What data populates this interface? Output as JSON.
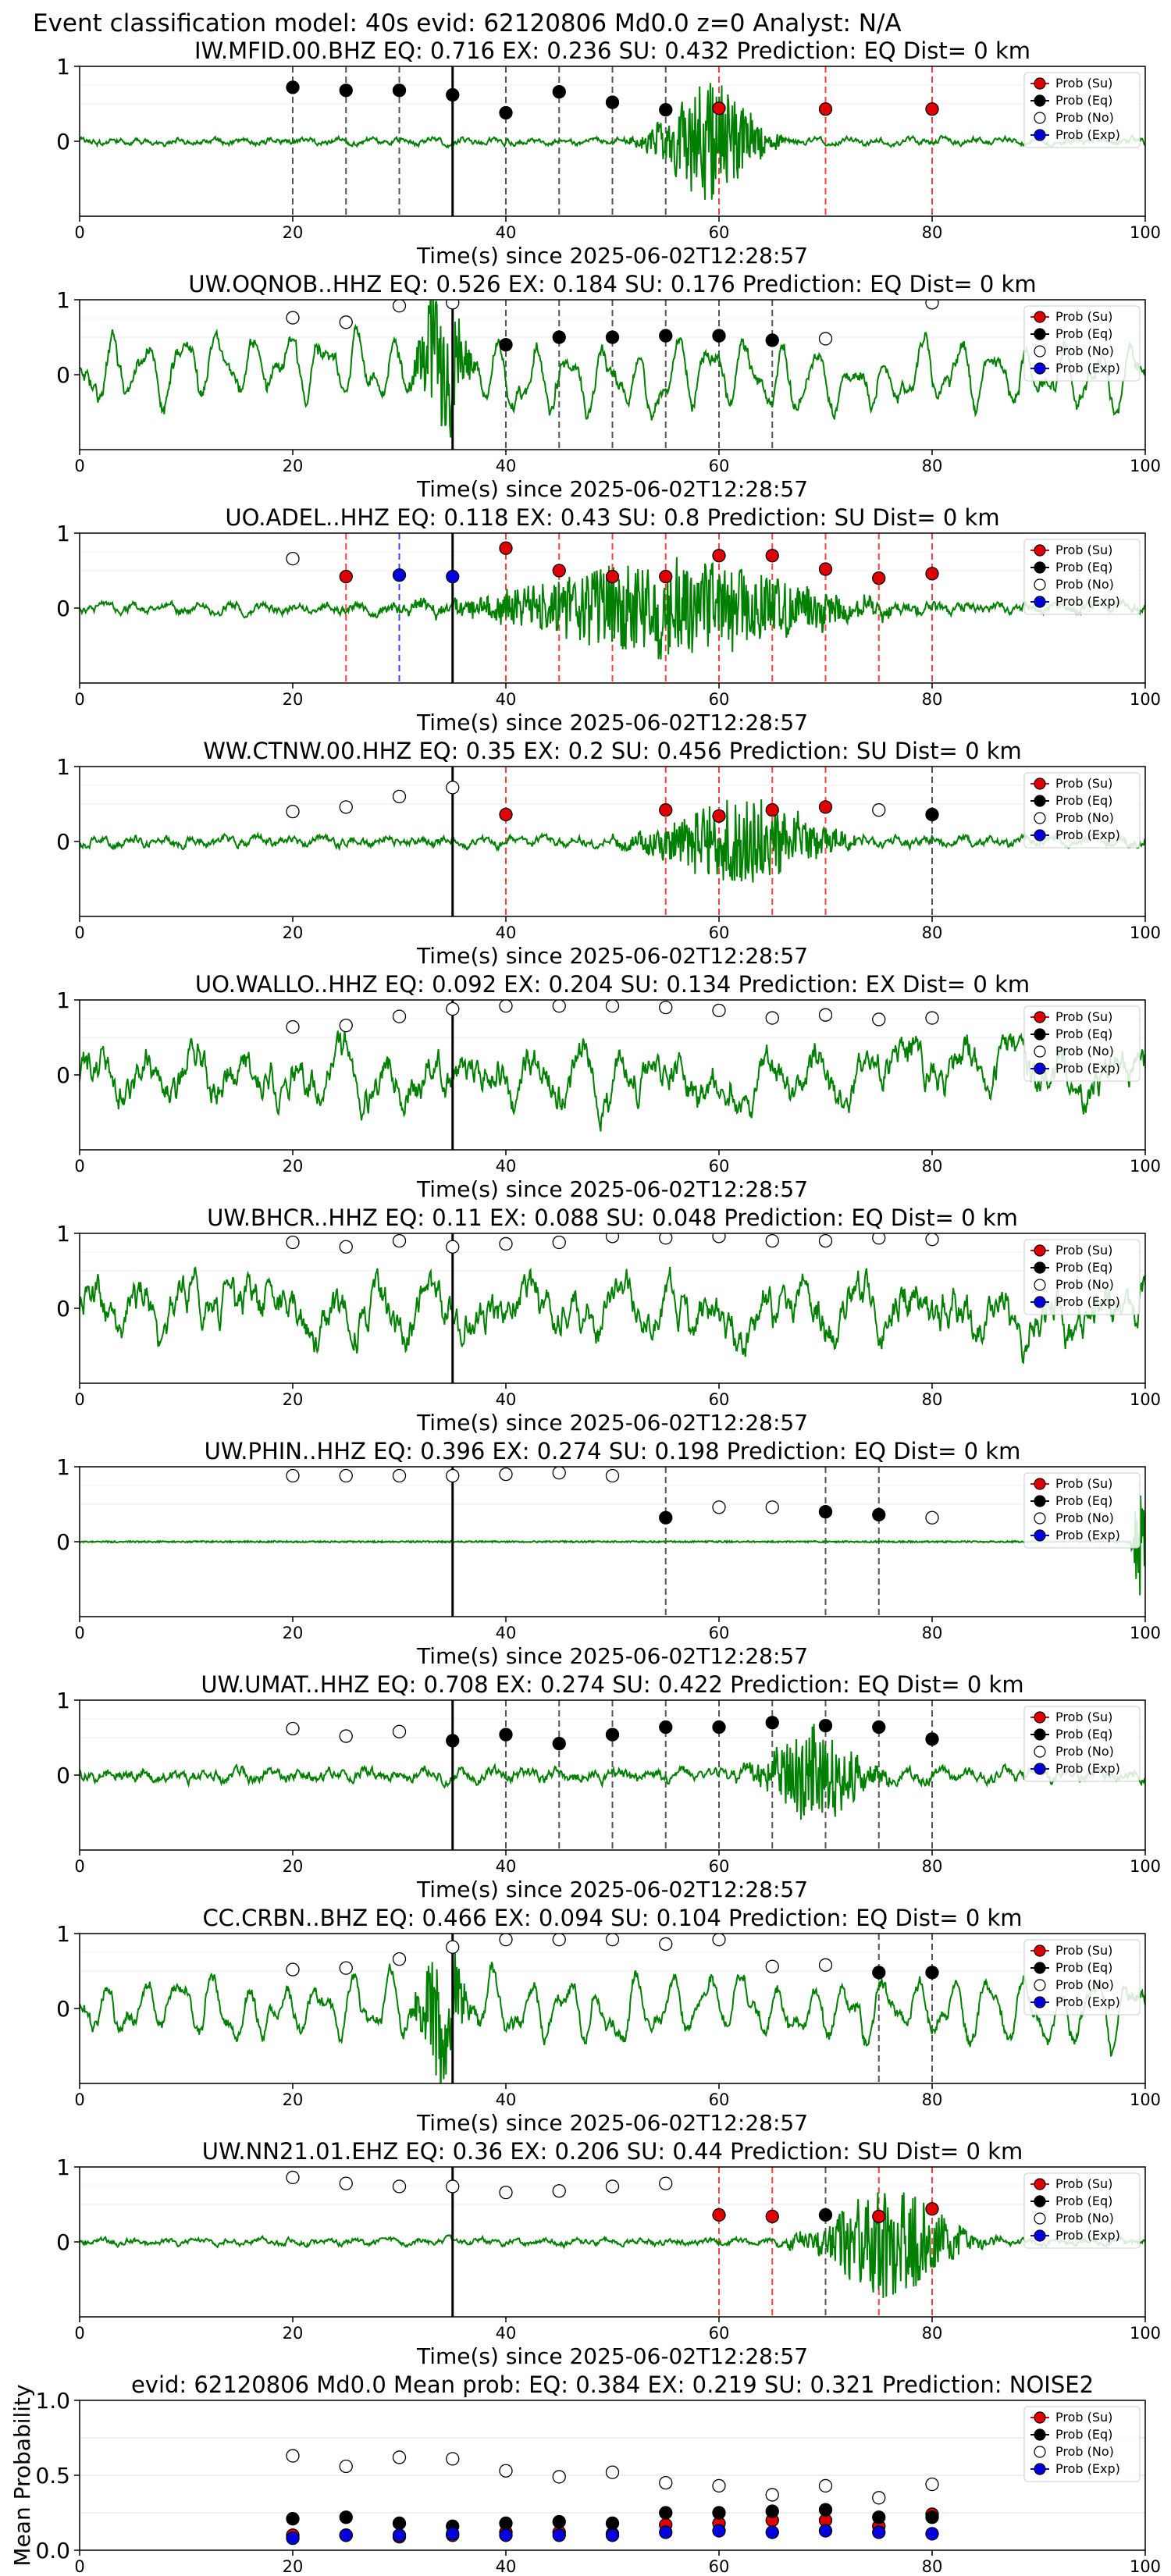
{
  "figure_title": "Event classification model: 40s evid: 62120806 Md0.0 z=0 Analyst: N/A",
  "xlabel": "Time(s) since 2025-06-02T12:28:57",
  "legend": [
    {
      "label": "Prob (Su)",
      "fill": "#e00000",
      "edge": "#000000"
    },
    {
      "label": "Prob (Eq)",
      "fill": "#000000",
      "edge": "#000000"
    },
    {
      "label": "Prob (No)",
      "fill": "#ffffff",
      "edge": "#000000"
    },
    {
      "label": "Prob (Exp)",
      "fill": "#0000e0",
      "edge": "#000000"
    }
  ],
  "colors": {
    "waveform": "#008000",
    "su_line": "#ff4040",
    "eq_line": "#555555",
    "exp_line": "#4040ff",
    "pick_line": "#000000"
  },
  "chart_data": [
    {
      "type": "line",
      "panel": 1,
      "title": "IW.MFID.00.BHZ   EQ: 0.716  EX: 0.236  SU: 0.432   Prediction: EQ    Dist= 0 km",
      "xlim": [
        0,
        100
      ],
      "ylim": [
        -1,
        1
      ],
      "yticks": [
        0,
        1
      ],
      "xticks": [
        0,
        20,
        40,
        60,
        80,
        100
      ],
      "waveform": {
        "style": "burst",
        "amp": 0.08,
        "burst_center": 59,
        "burst_amp": 0.8,
        "burst_width": 3
      },
      "pick_time": 35,
      "markers": [
        {
          "x": 20,
          "y": 0.72,
          "class": "Eq"
        },
        {
          "x": 25,
          "y": 0.68,
          "class": "Eq"
        },
        {
          "x": 30,
          "y": 0.68,
          "class": "Eq"
        },
        {
          "x": 35,
          "y": 0.62,
          "class": "Eq"
        },
        {
          "x": 40,
          "y": 0.38,
          "class": "Eq"
        },
        {
          "x": 45,
          "y": 0.66,
          "class": "Eq"
        },
        {
          "x": 50,
          "y": 0.52,
          "class": "Eq"
        },
        {
          "x": 55,
          "y": 0.42,
          "class": "Eq"
        },
        {
          "x": 60,
          "y": 0.44,
          "class": "Su"
        },
        {
          "x": 70,
          "y": 0.43,
          "class": "Su"
        },
        {
          "x": 80,
          "y": 0.43,
          "class": "Su"
        }
      ]
    },
    {
      "type": "line",
      "panel": 2,
      "title": "UW.OQNOB..HHZ   EQ: 0.526  EX: 0.184  SU: 0.176   Prediction: EQ    Dist= 0 km",
      "xlim": [
        0,
        100
      ],
      "ylim": [
        -1,
        1
      ],
      "yticks": [
        0,
        1
      ],
      "xticks": [
        0,
        20,
        40,
        60,
        80,
        100
      ],
      "waveform": {
        "style": "smooth",
        "amp": 0.45,
        "burst_center": 34,
        "burst_amp": 0.9,
        "burst_width": 1.5
      },
      "pick_time": 35,
      "markers": [
        {
          "x": 20,
          "y": 0.76,
          "class": "No"
        },
        {
          "x": 25,
          "y": 0.7,
          "class": "No"
        },
        {
          "x": 30,
          "y": 0.92,
          "class": "No"
        },
        {
          "x": 35,
          "y": 0.96,
          "class": "No"
        },
        {
          "x": 40,
          "y": 0.4,
          "class": "Eq"
        },
        {
          "x": 45,
          "y": 0.5,
          "class": "Eq"
        },
        {
          "x": 50,
          "y": 0.5,
          "class": "Eq"
        },
        {
          "x": 55,
          "y": 0.52,
          "class": "Eq"
        },
        {
          "x": 60,
          "y": 0.52,
          "class": "Eq"
        },
        {
          "x": 65,
          "y": 0.46,
          "class": "Eq"
        },
        {
          "x": 70,
          "y": 0.48,
          "class": "No"
        },
        {
          "x": 80,
          "y": 0.96,
          "class": "No"
        }
      ]
    },
    {
      "type": "line",
      "panel": 3,
      "title": "UO.ADEL..HHZ   EQ: 0.118  EX: 0.43  SU: 0.8   Prediction: SU    Dist= 0 km",
      "xlim": [
        0,
        100
      ],
      "ylim": [
        -1,
        1
      ],
      "yticks": [
        0,
        1
      ],
      "xticks": [
        0,
        20,
        40,
        60,
        80,
        100
      ],
      "waveform": {
        "style": "burst",
        "amp": 0.12,
        "burst_center": 55,
        "burst_amp": 0.65,
        "burst_width": 10
      },
      "pick_time": 35,
      "markers": [
        {
          "x": 20,
          "y": 0.66,
          "class": "No"
        },
        {
          "x": 25,
          "y": 0.42,
          "class": "Su"
        },
        {
          "x": 30,
          "y": 0.44,
          "class": "Exp"
        },
        {
          "x": 35,
          "y": 0.42,
          "class": "Exp"
        },
        {
          "x": 40,
          "y": 0.8,
          "class": "Su"
        },
        {
          "x": 45,
          "y": 0.5,
          "class": "Su"
        },
        {
          "x": 50,
          "y": 0.42,
          "class": "Su"
        },
        {
          "x": 55,
          "y": 0.42,
          "class": "Su"
        },
        {
          "x": 60,
          "y": 0.7,
          "class": "Su"
        },
        {
          "x": 65,
          "y": 0.7,
          "class": "Su"
        },
        {
          "x": 70,
          "y": 0.52,
          "class": "Su"
        },
        {
          "x": 75,
          "y": 0.4,
          "class": "Su"
        },
        {
          "x": 80,
          "y": 0.46,
          "class": "Su"
        }
      ]
    },
    {
      "type": "line",
      "panel": 4,
      "title": "WW.CTNW.00.HHZ   EQ: 0.35  EX: 0.2  SU: 0.456   Prediction: SU    Dist= 0 km",
      "xlim": [
        0,
        100
      ],
      "ylim": [
        -1,
        1
      ],
      "yticks": [
        0,
        1
      ],
      "xticks": [
        0,
        20,
        40,
        60,
        80,
        100
      ],
      "waveform": {
        "style": "burst",
        "amp": 0.12,
        "burst_center": 62,
        "burst_amp": 0.6,
        "burst_width": 5
      },
      "pick_time": 35,
      "markers": [
        {
          "x": 20,
          "y": 0.4,
          "class": "No"
        },
        {
          "x": 25,
          "y": 0.46,
          "class": "No"
        },
        {
          "x": 30,
          "y": 0.6,
          "class": "No"
        },
        {
          "x": 35,
          "y": 0.72,
          "class": "No"
        },
        {
          "x": 40,
          "y": 0.36,
          "class": "Su"
        },
        {
          "x": 55,
          "y": 0.42,
          "class": "Su"
        },
        {
          "x": 60,
          "y": 0.34,
          "class": "Su"
        },
        {
          "x": 65,
          "y": 0.42,
          "class": "Su"
        },
        {
          "x": 70,
          "y": 0.46,
          "class": "Su"
        },
        {
          "x": 75,
          "y": 0.42,
          "class": "No"
        },
        {
          "x": 80,
          "y": 0.36,
          "class": "Eq"
        }
      ]
    },
    {
      "type": "line",
      "panel": 5,
      "title": "UO.WALLO..HHZ   EQ: 0.092  EX: 0.204  SU: 0.134   Prediction: EX    Dist= 0 km",
      "xlim": [
        0,
        100
      ],
      "ylim": [
        -1,
        1
      ],
      "yticks": [
        0,
        1
      ],
      "xticks": [
        0,
        20,
        40,
        60,
        80,
        100
      ],
      "waveform": {
        "style": "noisy",
        "amp": 0.45,
        "burst_center": 0,
        "burst_amp": 0,
        "burst_width": 1
      },
      "pick_time": 35,
      "markers": [
        {
          "x": 20,
          "y": 0.64,
          "class": "No"
        },
        {
          "x": 25,
          "y": 0.66,
          "class": "No"
        },
        {
          "x": 30,
          "y": 0.78,
          "class": "No"
        },
        {
          "x": 35,
          "y": 0.88,
          "class": "No"
        },
        {
          "x": 40,
          "y": 0.92,
          "class": "No"
        },
        {
          "x": 45,
          "y": 0.92,
          "class": "No"
        },
        {
          "x": 50,
          "y": 0.92,
          "class": "No"
        },
        {
          "x": 55,
          "y": 0.9,
          "class": "No"
        },
        {
          "x": 60,
          "y": 0.86,
          "class": "No"
        },
        {
          "x": 65,
          "y": 0.76,
          "class": "No"
        },
        {
          "x": 70,
          "y": 0.8,
          "class": "No"
        },
        {
          "x": 75,
          "y": 0.74,
          "class": "No"
        },
        {
          "x": 80,
          "y": 0.76,
          "class": "No"
        }
      ]
    },
    {
      "type": "line",
      "panel": 6,
      "title": "UW.BHCR..HHZ   EQ: 0.11  EX: 0.088  SU: 0.048   Prediction: EQ    Dist= 0 km",
      "xlim": [
        0,
        100
      ],
      "ylim": [
        -1,
        1
      ],
      "yticks": [
        0,
        1
      ],
      "xticks": [
        0,
        20,
        40,
        60,
        80,
        100
      ],
      "waveform": {
        "style": "noisy",
        "amp": 0.5,
        "burst_center": 0,
        "burst_amp": 0,
        "burst_width": 1
      },
      "pick_time": 35,
      "markers": [
        {
          "x": 20,
          "y": 0.88,
          "class": "No"
        },
        {
          "x": 25,
          "y": 0.82,
          "class": "No"
        },
        {
          "x": 30,
          "y": 0.9,
          "class": "No"
        },
        {
          "x": 35,
          "y": 0.82,
          "class": "No"
        },
        {
          "x": 40,
          "y": 0.86,
          "class": "No"
        },
        {
          "x": 45,
          "y": 0.88,
          "class": "No"
        },
        {
          "x": 50,
          "y": 0.96,
          "class": "No"
        },
        {
          "x": 55,
          "y": 0.94,
          "class": "No"
        },
        {
          "x": 60,
          "y": 0.96,
          "class": "No"
        },
        {
          "x": 65,
          "y": 0.9,
          "class": "No"
        },
        {
          "x": 70,
          "y": 0.9,
          "class": "No"
        },
        {
          "x": 75,
          "y": 0.94,
          "class": "No"
        },
        {
          "x": 80,
          "y": 0.92,
          "class": "No"
        }
      ]
    },
    {
      "type": "line",
      "panel": 7,
      "title": "UW.PHIN..HHZ   EQ: 0.396  EX: 0.274  SU: 0.198   Prediction: EQ    Dist= 0 km",
      "xlim": [
        0,
        100
      ],
      "ylim": [
        -1,
        1
      ],
      "yticks": [
        0,
        1
      ],
      "xticks": [
        0,
        20,
        40,
        60,
        80,
        100
      ],
      "waveform": {
        "style": "flat",
        "amp": 0.02,
        "burst_center": 99.5,
        "burst_amp": 0.9,
        "burst_width": 0.4
      },
      "pick_time": 35,
      "markers": [
        {
          "x": 20,
          "y": 0.88,
          "class": "No"
        },
        {
          "x": 25,
          "y": 0.88,
          "class": "No"
        },
        {
          "x": 30,
          "y": 0.88,
          "class": "No"
        },
        {
          "x": 35,
          "y": 0.88,
          "class": "No"
        },
        {
          "x": 40,
          "y": 0.9,
          "class": "No"
        },
        {
          "x": 45,
          "y": 0.92,
          "class": "No"
        },
        {
          "x": 50,
          "y": 0.88,
          "class": "No"
        },
        {
          "x": 55,
          "y": 0.32,
          "class": "Eq"
        },
        {
          "x": 60,
          "y": 0.46,
          "class": "No"
        },
        {
          "x": 65,
          "y": 0.46,
          "class": "No"
        },
        {
          "x": 70,
          "y": 0.4,
          "class": "Eq"
        },
        {
          "x": 75,
          "y": 0.36,
          "class": "Eq"
        },
        {
          "x": 80,
          "y": 0.32,
          "class": "No"
        }
      ]
    },
    {
      "type": "line",
      "panel": 8,
      "title": "UW.UMAT..HHZ   EQ: 0.708  EX: 0.274  SU: 0.422   Prediction: EQ    Dist= 0 km",
      "xlim": [
        0,
        100
      ],
      "ylim": [
        -1,
        1
      ],
      "yticks": [
        0,
        1
      ],
      "xticks": [
        0,
        20,
        40,
        60,
        80,
        100
      ],
      "waveform": {
        "style": "burst",
        "amp": 0.15,
        "burst_center": 69,
        "burst_amp": 0.7,
        "burst_width": 3
      },
      "pick_time": 35,
      "markers": [
        {
          "x": 20,
          "y": 0.62,
          "class": "No"
        },
        {
          "x": 25,
          "y": 0.52,
          "class": "No"
        },
        {
          "x": 30,
          "y": 0.58,
          "class": "No"
        },
        {
          "x": 35,
          "y": 0.46,
          "class": "Eq"
        },
        {
          "x": 40,
          "y": 0.54,
          "class": "Eq"
        },
        {
          "x": 45,
          "y": 0.42,
          "class": "Eq"
        },
        {
          "x": 50,
          "y": 0.54,
          "class": "Eq"
        },
        {
          "x": 55,
          "y": 0.64,
          "class": "Eq"
        },
        {
          "x": 60,
          "y": 0.64,
          "class": "Eq"
        },
        {
          "x": 65,
          "y": 0.7,
          "class": "Eq"
        },
        {
          "x": 70,
          "y": 0.66,
          "class": "Eq"
        },
        {
          "x": 75,
          "y": 0.64,
          "class": "Eq"
        },
        {
          "x": 80,
          "y": 0.48,
          "class": "Eq"
        }
      ]
    },
    {
      "type": "line",
      "panel": 9,
      "title": "CC.CRBN..BHZ   EQ: 0.466  EX: 0.094  SU: 0.104   Prediction: EQ    Dist= 0 km",
      "xlim": [
        0,
        100
      ],
      "ylim": [
        -1,
        1
      ],
      "yticks": [
        0,
        1
      ],
      "xticks": [
        0,
        20,
        40,
        60,
        80,
        100
      ],
      "waveform": {
        "style": "smooth",
        "amp": 0.4,
        "burst_center": 34,
        "burst_amp": 0.8,
        "burst_width": 1.5
      },
      "pick_time": 35,
      "markers": [
        {
          "x": 20,
          "y": 0.52,
          "class": "No"
        },
        {
          "x": 25,
          "y": 0.54,
          "class": "No"
        },
        {
          "x": 30,
          "y": 0.66,
          "class": "No"
        },
        {
          "x": 35,
          "y": 0.82,
          "class": "No"
        },
        {
          "x": 40,
          "y": 0.92,
          "class": "No"
        },
        {
          "x": 45,
          "y": 0.92,
          "class": "No"
        },
        {
          "x": 50,
          "y": 0.92,
          "class": "No"
        },
        {
          "x": 55,
          "y": 0.86,
          "class": "No"
        },
        {
          "x": 60,
          "y": 0.92,
          "class": "No"
        },
        {
          "x": 65,
          "y": 0.56,
          "class": "No"
        },
        {
          "x": 70,
          "y": 0.58,
          "class": "No"
        },
        {
          "x": 75,
          "y": 0.48,
          "class": "Eq"
        },
        {
          "x": 80,
          "y": 0.48,
          "class": "Eq"
        }
      ]
    },
    {
      "type": "line",
      "panel": 10,
      "title": "UW.NN21.01.EHZ   EQ: 0.36  EX: 0.206  SU: 0.44   Prediction: SU    Dist= 0 km",
      "xlim": [
        0,
        100
      ],
      "ylim": [
        -1,
        1
      ],
      "yticks": [
        0,
        1
      ],
      "xticks": [
        0,
        20,
        40,
        60,
        80,
        100
      ],
      "waveform": {
        "style": "burst",
        "amp": 0.08,
        "burst_center": 76,
        "burst_amp": 0.75,
        "burst_width": 4
      },
      "pick_time": 35,
      "markers": [
        {
          "x": 20,
          "y": 0.86,
          "class": "No"
        },
        {
          "x": 25,
          "y": 0.78,
          "class": "No"
        },
        {
          "x": 30,
          "y": 0.74,
          "class": "No"
        },
        {
          "x": 35,
          "y": 0.74,
          "class": "No"
        },
        {
          "x": 40,
          "y": 0.66,
          "class": "No"
        },
        {
          "x": 45,
          "y": 0.68,
          "class": "No"
        },
        {
          "x": 50,
          "y": 0.74,
          "class": "No"
        },
        {
          "x": 55,
          "y": 0.78,
          "class": "No"
        },
        {
          "x": 60,
          "y": 0.36,
          "class": "Su"
        },
        {
          "x": 65,
          "y": 0.34,
          "class": "Su"
        },
        {
          "x": 70,
          "y": 0.36,
          "class": "Eq"
        },
        {
          "x": 75,
          "y": 0.34,
          "class": "Su"
        },
        {
          "x": 80,
          "y": 0.44,
          "class": "Su"
        }
      ]
    },
    {
      "type": "scatter",
      "panel": 11,
      "title": "evid: 62120806  Md0.0   Mean prob:   EQ: 0.384  EX: 0.219  SU: 0.321   Prediction: NOISE2",
      "ylabel": "Mean Probability",
      "xlim": [
        0,
        100
      ],
      "ylim": [
        0,
        1
      ],
      "yticks": [
        0.0,
        0.5,
        1.0
      ],
      "ytick_labels": [
        "0.0",
        "0.5",
        "1.0"
      ],
      "xticks": [
        0,
        20,
        40,
        60,
        80,
        100
      ],
      "grid": true,
      "x": [
        20,
        25,
        30,
        35,
        40,
        45,
        50,
        55,
        60,
        65,
        70,
        75,
        80
      ],
      "series": [
        {
          "name": "Prob (Su)",
          "class": "Su",
          "values": [
            0.1,
            0.1,
            0.09,
            0.1,
            0.12,
            0.12,
            0.11,
            0.17,
            0.18,
            0.2,
            0.2,
            0.16,
            0.24
          ]
        },
        {
          "name": "Prob (Eq)",
          "class": "Eq",
          "values": [
            0.21,
            0.22,
            0.18,
            0.16,
            0.18,
            0.19,
            0.18,
            0.25,
            0.25,
            0.26,
            0.27,
            0.22,
            0.22
          ]
        },
        {
          "name": "Prob (No)",
          "class": "No",
          "values": [
            0.63,
            0.56,
            0.62,
            0.61,
            0.53,
            0.49,
            0.52,
            0.45,
            0.43,
            0.37,
            0.43,
            0.35,
            0.44
          ]
        },
        {
          "name": "Prob (Exp)",
          "class": "Exp",
          "values": [
            0.08,
            0.1,
            0.1,
            0.11,
            0.1,
            0.1,
            0.1,
            0.12,
            0.13,
            0.12,
            0.13,
            0.12,
            0.11
          ]
        }
      ]
    }
  ]
}
